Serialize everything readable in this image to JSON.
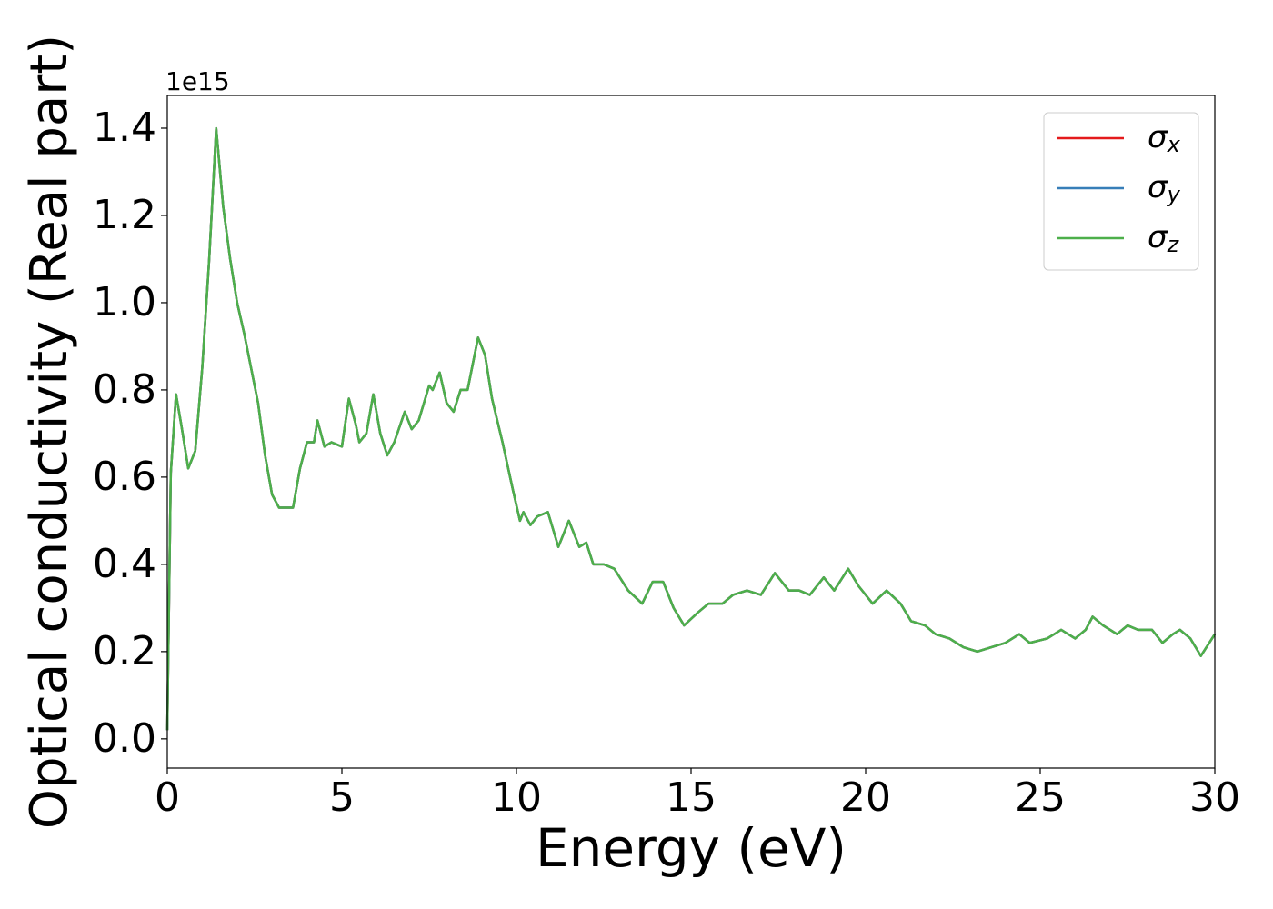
{
  "chart_data": {
    "type": "line",
    "xlabel": "Energy (eV)",
    "ylabel": "Optical conductivity (Real part)",
    "offset_label": "1e15",
    "x": [
      0,
      0.1,
      0.25,
      0.4,
      0.6,
      0.8,
      1.0,
      1.2,
      1.4,
      1.6,
      1.8,
      2.0,
      2.2,
      2.4,
      2.6,
      2.8,
      3.0,
      3.2,
      3.4,
      3.6,
      3.8,
      4.0,
      4.2,
      4.3,
      4.5,
      4.7,
      5.0,
      5.2,
      5.4,
      5.5,
      5.7,
      5.9,
      6.1,
      6.3,
      6.5,
      6.8,
      7.0,
      7.2,
      7.5,
      7.6,
      7.8,
      8.0,
      8.2,
      8.4,
      8.6,
      8.9,
      9.1,
      9.3,
      9.6,
      9.9,
      10.1,
      10.2,
      10.4,
      10.6,
      10.9,
      11.2,
      11.5,
      11.8,
      12.0,
      12.2,
      12.5,
      12.8,
      13.2,
      13.6,
      13.9,
      14.2,
      14.5,
      14.8,
      15.2,
      15.5,
      15.9,
      16.2,
      16.6,
      17.0,
      17.4,
      17.8,
      18.1,
      18.4,
      18.8,
      19.1,
      19.5,
      19.8,
      20.2,
      20.6,
      21.0,
      21.3,
      21.7,
      22.0,
      22.4,
      22.8,
      23.2,
      23.6,
      24.0,
      24.4,
      24.7,
      25.2,
      25.6,
      26.0,
      26.3,
      26.5,
      26.8,
      27.2,
      27.5,
      27.8,
      28.2,
      28.5,
      28.8,
      29.0,
      29.3,
      29.6,
      30.0
    ],
    "series": [
      {
        "name": "σx",
        "color": "#e41a1c",
        "values": [
          0.02,
          0.61,
          0.79,
          0.72,
          0.62,
          0.66,
          0.85,
          1.1,
          1.4,
          1.22,
          1.1,
          1.0,
          0.93,
          0.85,
          0.77,
          0.65,
          0.56,
          0.53,
          0.53,
          0.53,
          0.62,
          0.68,
          0.68,
          0.73,
          0.67,
          0.68,
          0.67,
          0.78,
          0.72,
          0.68,
          0.7,
          0.79,
          0.7,
          0.65,
          0.68,
          0.75,
          0.71,
          0.73,
          0.81,
          0.8,
          0.84,
          0.77,
          0.75,
          0.8,
          0.8,
          0.92,
          0.88,
          0.78,
          0.68,
          0.57,
          0.5,
          0.52,
          0.49,
          0.51,
          0.52,
          0.44,
          0.5,
          0.44,
          0.45,
          0.4,
          0.4,
          0.39,
          0.34,
          0.31,
          0.36,
          0.36,
          0.3,
          0.26,
          0.29,
          0.31,
          0.31,
          0.33,
          0.34,
          0.33,
          0.38,
          0.34,
          0.34,
          0.33,
          0.37,
          0.34,
          0.39,
          0.35,
          0.31,
          0.34,
          0.31,
          0.27,
          0.26,
          0.24,
          0.23,
          0.21,
          0.2,
          0.21,
          0.22,
          0.24,
          0.22,
          0.23,
          0.25,
          0.23,
          0.25,
          0.28,
          0.26,
          0.24,
          0.26,
          0.25,
          0.25,
          0.22,
          0.24,
          0.25,
          0.23,
          0.19,
          0.24
        ]
      },
      {
        "name": "σy",
        "color": "#377eb8",
        "values": [
          0.02,
          0.61,
          0.79,
          0.72,
          0.62,
          0.66,
          0.85,
          1.1,
          1.4,
          1.22,
          1.1,
          1.0,
          0.93,
          0.85,
          0.77,
          0.65,
          0.56,
          0.53,
          0.53,
          0.53,
          0.62,
          0.68,
          0.68,
          0.73,
          0.67,
          0.68,
          0.67,
          0.78,
          0.72,
          0.68,
          0.7,
          0.79,
          0.7,
          0.65,
          0.68,
          0.75,
          0.71,
          0.73,
          0.81,
          0.8,
          0.84,
          0.77,
          0.75,
          0.8,
          0.8,
          0.92,
          0.88,
          0.78,
          0.68,
          0.57,
          0.5,
          0.52,
          0.49,
          0.51,
          0.52,
          0.44,
          0.5,
          0.44,
          0.45,
          0.4,
          0.4,
          0.39,
          0.34,
          0.31,
          0.36,
          0.36,
          0.3,
          0.26,
          0.29,
          0.31,
          0.31,
          0.33,
          0.34,
          0.33,
          0.38,
          0.34,
          0.34,
          0.33,
          0.37,
          0.34,
          0.39,
          0.35,
          0.31,
          0.34,
          0.31,
          0.27,
          0.26,
          0.24,
          0.23,
          0.21,
          0.2,
          0.21,
          0.22,
          0.24,
          0.22,
          0.23,
          0.25,
          0.23,
          0.25,
          0.28,
          0.26,
          0.24,
          0.26,
          0.25,
          0.25,
          0.22,
          0.24,
          0.25,
          0.23,
          0.19,
          0.24
        ]
      },
      {
        "name": "σz",
        "color": "#4daf4a",
        "values": [
          0.02,
          0.61,
          0.79,
          0.72,
          0.62,
          0.66,
          0.85,
          1.1,
          1.4,
          1.22,
          1.1,
          1.0,
          0.93,
          0.85,
          0.77,
          0.65,
          0.56,
          0.53,
          0.53,
          0.53,
          0.62,
          0.68,
          0.68,
          0.73,
          0.67,
          0.68,
          0.67,
          0.78,
          0.72,
          0.68,
          0.7,
          0.79,
          0.7,
          0.65,
          0.68,
          0.75,
          0.71,
          0.73,
          0.81,
          0.8,
          0.84,
          0.77,
          0.75,
          0.8,
          0.8,
          0.92,
          0.88,
          0.78,
          0.68,
          0.57,
          0.5,
          0.52,
          0.49,
          0.51,
          0.52,
          0.44,
          0.5,
          0.44,
          0.45,
          0.4,
          0.4,
          0.39,
          0.34,
          0.31,
          0.36,
          0.36,
          0.3,
          0.26,
          0.29,
          0.31,
          0.31,
          0.33,
          0.34,
          0.33,
          0.38,
          0.34,
          0.34,
          0.33,
          0.37,
          0.34,
          0.39,
          0.35,
          0.31,
          0.34,
          0.31,
          0.27,
          0.26,
          0.24,
          0.23,
          0.21,
          0.2,
          0.21,
          0.22,
          0.24,
          0.22,
          0.23,
          0.25,
          0.23,
          0.25,
          0.28,
          0.26,
          0.24,
          0.26,
          0.25,
          0.25,
          0.22,
          0.24,
          0.25,
          0.23,
          0.19,
          0.24
        ]
      }
    ],
    "xlim": [
      0,
      30
    ],
    "xticks": [
      0,
      5,
      10,
      15,
      20,
      25,
      30
    ],
    "ylim": [
      -0.067,
      1.475
    ],
    "yticks": [
      {
        "value": 0,
        "label": "0.0"
      },
      0.2,
      0.4,
      0.6,
      0.8,
      {
        "value": 1,
        "label": "1.0"
      },
      1.2,
      1.4
    ],
    "grid": false,
    "legend": "upper right"
  }
}
